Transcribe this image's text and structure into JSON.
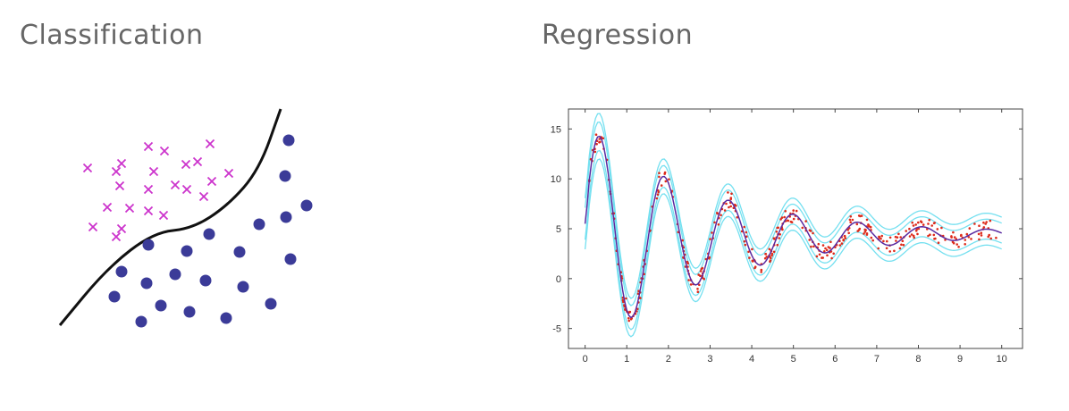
{
  "titles": {
    "left": "Classification",
    "right": "Regression"
  },
  "chart_data": [
    {
      "type": "scatter",
      "title": "Classification",
      "colors": {
        "cross": "#cc33cc",
        "circle": "#3b3b98",
        "boundary": "#111111"
      },
      "classes": [
        {
          "marker": "cross",
          "points": [
            [
              98,
              188
            ],
            [
              130,
              192
            ],
            [
              136,
              183
            ],
            [
              166,
              164
            ],
            [
              184,
              169
            ],
            [
              235,
              161
            ],
            [
              172,
              192
            ],
            [
              208,
              184
            ],
            [
              221,
              181
            ],
            [
              134,
              208
            ],
            [
              166,
              212
            ],
            [
              196,
              207
            ],
            [
              209,
              212
            ],
            [
              237,
              203
            ],
            [
              256,
              194
            ],
            [
              228,
              220
            ],
            [
              120,
              232
            ],
            [
              145,
              233
            ],
            [
              166,
              236
            ],
            [
              183,
              241
            ],
            [
              104,
              254
            ],
            [
              136,
              256
            ],
            [
              130,
              265
            ]
          ]
        },
        {
          "marker": "circle",
          "points": [
            [
              323,
              157
            ],
            [
              319,
              197
            ],
            [
              343,
              230
            ],
            [
              320,
              243
            ],
            [
              290,
              251
            ],
            [
              234,
              262
            ],
            [
              166,
              274
            ],
            [
              209,
              281
            ],
            [
              268,
              282
            ],
            [
              325,
              290
            ],
            [
              136,
              304
            ],
            [
              196,
              307
            ],
            [
              164,
              317
            ],
            [
              230,
              314
            ],
            [
              272,
              321
            ],
            [
              128,
              332
            ],
            [
              303,
              340
            ],
            [
              180,
              342
            ],
            [
              212,
              349
            ],
            [
              253,
              356
            ],
            [
              158,
              360
            ]
          ]
        }
      ],
      "boundary": [
        [
          67,
          364
        ],
        [
          120,
          300
        ],
        [
          172,
          260
        ],
        [
          215,
          256
        ],
        [
          255,
          230
        ],
        [
          290,
          190
        ],
        [
          314,
          122
        ]
      ]
    },
    {
      "type": "line",
      "title": "Regression",
      "xlim": [
        -0.4,
        10.5
      ],
      "ylim": [
        -7,
        17
      ],
      "xticks": [
        0,
        1,
        2,
        3,
        4,
        5,
        6,
        7,
        8,
        9,
        10
      ],
      "yticks": [
        15,
        10,
        5,
        0,
        -5
      ],
      "colors": {
        "mean": "#5a2aa0",
        "band": "#66ddee",
        "points": "#dd2a1a"
      },
      "band_offsets": [
        1.0,
        1.6,
        -1.0,
        -1.6
      ]
    }
  ]
}
